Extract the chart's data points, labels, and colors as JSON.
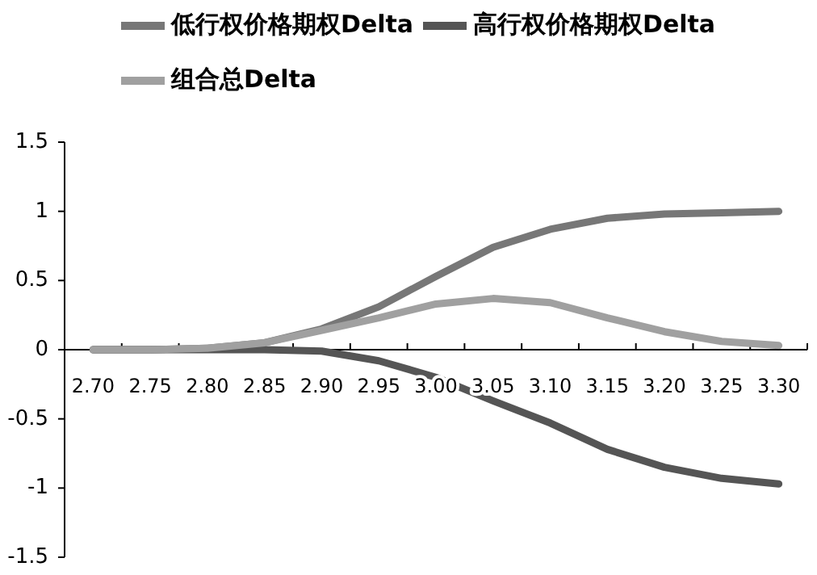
{
  "chart_data": {
    "type": "line",
    "categories": [
      "2.70",
      "2.75",
      "2.80",
      "2.85",
      "2.90",
      "2.95",
      "3.00",
      "3.05",
      "3.10",
      "3.15",
      "3.20",
      "3.25",
      "3.30"
    ],
    "series": [
      {
        "name": "低行权价格期权Delta",
        "color": "#777777",
        "values": [
          0,
          0,
          0.01,
          0.05,
          0.15,
          0.31,
          0.53,
          0.74,
          0.87,
          0.95,
          0.98,
          0.99,
          1.0
        ]
      },
      {
        "name": "高行权价格期权Delta",
        "color": "#555555",
        "values": [
          0,
          0,
          0,
          0,
          -0.01,
          -0.08,
          -0.2,
          -0.37,
          -0.53,
          -0.72,
          -0.85,
          -0.93,
          -0.97
        ]
      },
      {
        "name": "组合总Delta",
        "color": "#a0a0a0",
        "values": [
          0,
          0,
          0.01,
          0.05,
          0.14,
          0.23,
          0.33,
          0.37,
          0.34,
          0.23,
          0.13,
          0.06,
          0.03
        ]
      }
    ],
    "ylim": [
      -1.5,
      1.5
    ],
    "yticks": [
      -1.5,
      -1,
      -0.5,
      0,
      0.5,
      1,
      1.5
    ],
    "legend": "top",
    "marker": "none",
    "line_style": "solid"
  }
}
